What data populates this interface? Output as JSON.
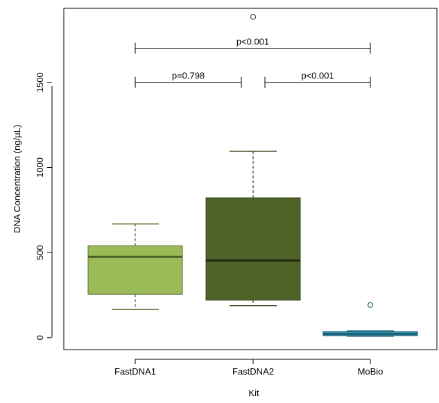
{
  "chart_data": {
    "type": "box",
    "title": "",
    "xlabel": "Kit",
    "ylabel": "DNA Concentration (ng/µL)",
    "ylim": [
      -70,
      1935
    ],
    "yticks": [
      0,
      500,
      1000,
      1500
    ],
    "y_tick_labels": [
      "0",
      "500",
      "1000",
      "1500"
    ],
    "categories": [
      "FastDNA1",
      "FastDNA2",
      "MoBio"
    ],
    "boxes": [
      {
        "category": "FastDNA1",
        "whisker_low": 165,
        "q1": 255,
        "median": 475,
        "q3": 540,
        "whisker_high": 668,
        "outliers": [],
        "fill": "#9bbb59",
        "line": "#556b2f",
        "median_color": "#4a5e28"
      },
      {
        "category": "FastDNA2",
        "whisker_low": 188,
        "q1": 220,
        "median": 453,
        "q3": 822,
        "whisker_high": 1095,
        "outliers": [
          1885
        ],
        "fill": "#4f6228",
        "line": "#3a4a1c",
        "median_color": "#1f2a0e"
      },
      {
        "category": "MoBio",
        "whisker_low": 8,
        "q1": 12,
        "median": 22,
        "q3": 36,
        "whisker_high": 40,
        "outliers": [
          192
        ],
        "fill": "#31a1c1",
        "line": "#1f5f73",
        "median_color": "#1f5f73"
      }
    ],
    "grid": false,
    "legend": "none",
    "annotations": [
      {
        "label": "p=0.798",
        "from": "FastDNA1",
        "to": "FastDNA2",
        "y": 1500
      },
      {
        "label": "p<0.001",
        "from": "FastDNA2",
        "to": "MoBio",
        "y": 1500
      },
      {
        "label": "p<0.001",
        "from": "FastDNA1",
        "to": "MoBio",
        "y": 1700
      }
    ]
  }
}
